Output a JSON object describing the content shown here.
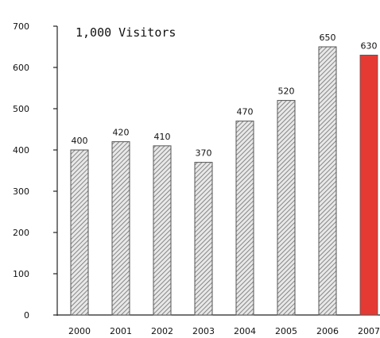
{
  "chart_data": {
    "type": "bar",
    "title": "1,000 Visitors",
    "categories": [
      "2000",
      "2001",
      "2002",
      "2003",
      "2004",
      "2005",
      "2006",
      "2007"
    ],
    "values": [
      400,
      420,
      410,
      370,
      470,
      520,
      650,
      630
    ],
    "ylim": [
      0,
      700
    ],
    "yticks": [
      0,
      100,
      200,
      300,
      400,
      500,
      600,
      700
    ],
    "grid": false,
    "colors": {
      "bar": "#d9d9d9",
      "highlight": "#e53a34",
      "axis": "#222222",
      "text": "#111111"
    },
    "highlight_index": 7
  }
}
